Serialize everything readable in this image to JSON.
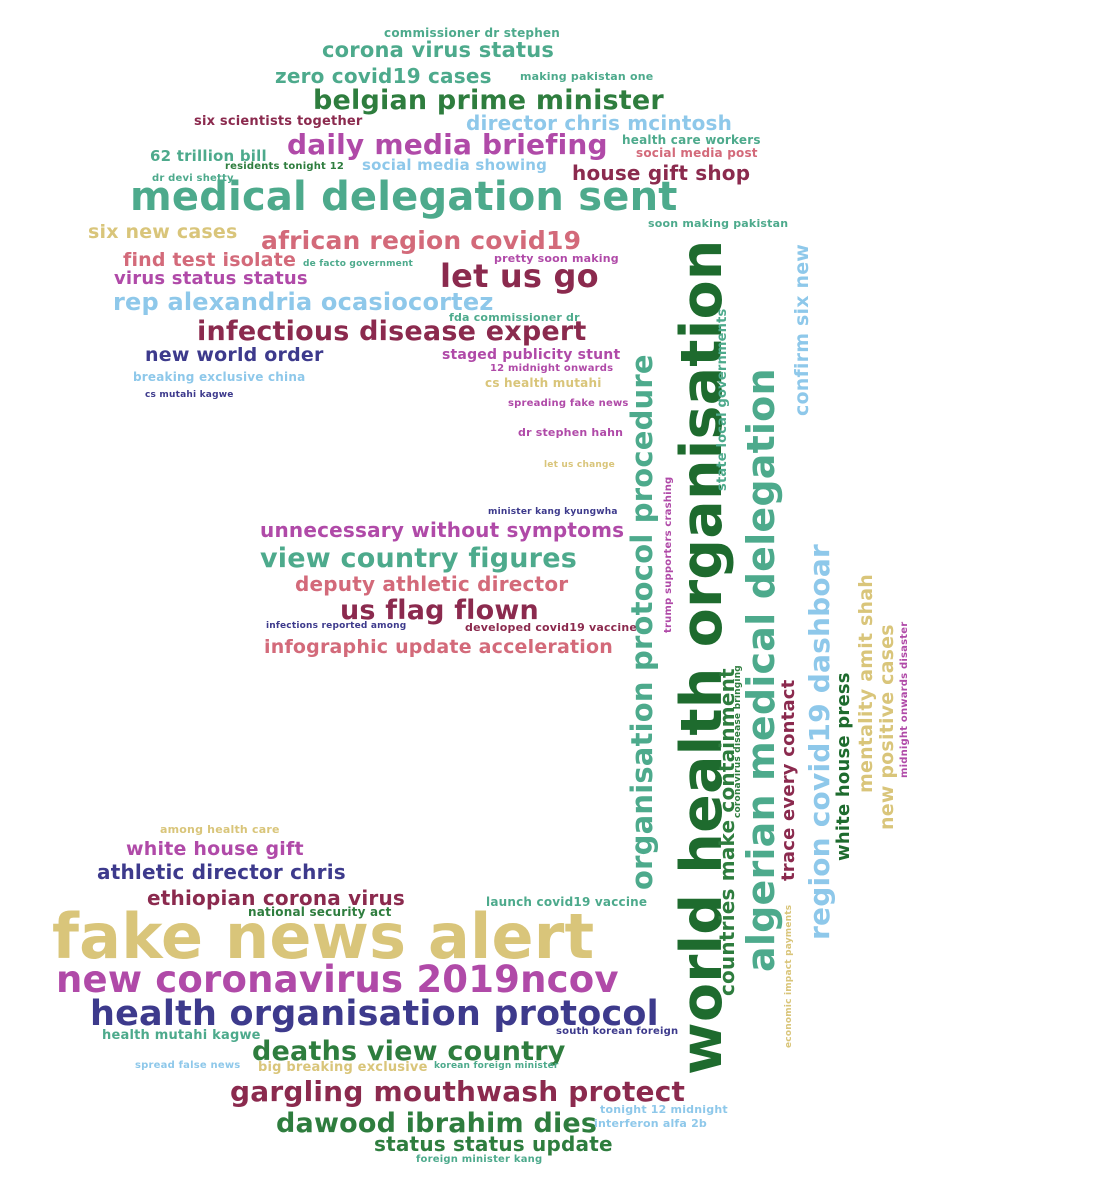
{
  "colors": {
    "teal": "#4daa8c",
    "green": "#2e7d3e",
    "darkgreen": "#1e6b2e",
    "maroon": "#8b2a4e",
    "magenta": "#b04aa8",
    "pink": "#d36a7a",
    "lightblue": "#8ec8ea",
    "navy": "#3d3a8c",
    "khaki": "#d9c57a"
  },
  "words": [
    {
      "text": "commissioner dr stephen",
      "color": "teal"
    },
    {
      "text": "corona virus status",
      "color": "teal"
    },
    {
      "text": "zero covid19 cases",
      "color": "teal"
    },
    {
      "text": "making pakistan one",
      "color": "teal"
    },
    {
      "text": "belgian prime minister",
      "color": "green"
    },
    {
      "text": "six scientists together",
      "color": "maroon"
    },
    {
      "text": "director chris mcintosh",
      "color": "lightblue"
    },
    {
      "text": "daily media briefing",
      "color": "magenta"
    },
    {
      "text": "health care workers",
      "color": "teal"
    },
    {
      "text": "social media post",
      "color": "pink"
    },
    {
      "text": "62 trillion bill",
      "color": "teal"
    },
    {
      "text": "residents tonight 12",
      "color": "green"
    },
    {
      "text": "social media showing",
      "color": "lightblue"
    },
    {
      "text": "dr devi shetty",
      "color": "teal"
    },
    {
      "text": "house gift shop",
      "color": "maroon"
    },
    {
      "text": "medical delegation sent",
      "color": "teal"
    },
    {
      "text": "soon making pakistan",
      "color": "teal"
    },
    {
      "text": "six new cases",
      "color": "khaki"
    },
    {
      "text": "african region covid19",
      "color": "pink"
    },
    {
      "text": "find test isolate",
      "color": "pink"
    },
    {
      "text": "de facto government",
      "color": "teal"
    },
    {
      "text": "pretty soon making",
      "color": "magenta"
    },
    {
      "text": "let us go",
      "color": "maroon"
    },
    {
      "text": "virus status status",
      "color": "magenta"
    },
    {
      "text": "rep alexandria ocasiocortez",
      "color": "lightblue"
    },
    {
      "text": "fda commissioner dr",
      "color": "teal"
    },
    {
      "text": "infectious disease expert",
      "color": "maroon"
    },
    {
      "text": "new world order",
      "color": "navy"
    },
    {
      "text": "staged publicity stunt",
      "color": "magenta"
    },
    {
      "text": "12 midnight onwards",
      "color": "magenta"
    },
    {
      "text": "breaking exclusive china",
      "color": "lightblue"
    },
    {
      "text": "cs health mutahi",
      "color": "khaki"
    },
    {
      "text": "cs mutahi kagwe",
      "color": "navy"
    },
    {
      "text": "spreading fake news",
      "color": "magenta"
    },
    {
      "text": "dr stephen hahn",
      "color": "magenta"
    },
    {
      "text": "let us change",
      "color": "khaki"
    },
    {
      "text": "minister kang kyungwha",
      "color": "navy"
    },
    {
      "text": "unnecessary without symptoms",
      "color": "magenta"
    },
    {
      "text": "view country figures",
      "color": "teal"
    },
    {
      "text": "deputy athletic director",
      "color": "pink"
    },
    {
      "text": "us flag flown",
      "color": "maroon"
    },
    {
      "text": "infections reported among",
      "color": "navy"
    },
    {
      "text": "developed covid19 vaccine",
      "color": "maroon"
    },
    {
      "text": "infographic update acceleration",
      "color": "pink"
    },
    {
      "text": "among health care",
      "color": "khaki"
    },
    {
      "text": "white house gift",
      "color": "magenta"
    },
    {
      "text": "athletic director chris",
      "color": "navy"
    },
    {
      "text": "ethiopian corona virus",
      "color": "maroon"
    },
    {
      "text": "national security act",
      "color": "green"
    },
    {
      "text": "launch covid19 vaccine",
      "color": "teal"
    },
    {
      "text": "fake news alert",
      "color": "khaki"
    },
    {
      "text": "new coronavirus 2019ncov",
      "color": "magenta"
    },
    {
      "text": "health organisation protocol",
      "color": "navy"
    },
    {
      "text": "south korean foreign",
      "color": "navy"
    },
    {
      "text": "health mutahi kagwe",
      "color": "teal"
    },
    {
      "text": "deaths view country",
      "color": "green"
    },
    {
      "text": "spread false news",
      "color": "lightblue"
    },
    {
      "text": "big breaking exclusive",
      "color": "khaki"
    },
    {
      "text": "korean foreign minister",
      "color": "teal"
    },
    {
      "text": "gargling mouthwash protect",
      "color": "maroon"
    },
    {
      "text": "tonight 12 midnight",
      "color": "lightblue"
    },
    {
      "text": "dawood ibrahim dies",
      "color": "green"
    },
    {
      "text": "interferon alfa 2b",
      "color": "lightblue"
    },
    {
      "text": "status status update",
      "color": "green"
    },
    {
      "text": "foreign minister kang",
      "color": "teal"
    },
    {
      "text": "world health organisation",
      "color": "darkgreen"
    },
    {
      "text": "organisation protocol procedure",
      "color": "teal"
    },
    {
      "text": "algerian medical delegation",
      "color": "teal"
    },
    {
      "text": "confirm six new",
      "color": "lightblue"
    },
    {
      "text": "state local governments",
      "color": "teal"
    },
    {
      "text": "countries make containment",
      "color": "green"
    },
    {
      "text": "coronavirus disease bringing",
      "color": "green"
    },
    {
      "text": "trump supporters crashing",
      "color": "magenta"
    },
    {
      "text": "trace every contact",
      "color": "maroon"
    },
    {
      "text": "region covid19 dashboar",
      "color": "lightblue"
    },
    {
      "text": "white house press",
      "color": "darkgreen"
    },
    {
      "text": "mentality amit shah",
      "color": "khaki"
    },
    {
      "text": "new positive cases",
      "color": "khaki"
    },
    {
      "text": "midnight onwards disaster",
      "color": "magenta"
    },
    {
      "text": "economic impact payments",
      "color": "khaki"
    }
  ]
}
